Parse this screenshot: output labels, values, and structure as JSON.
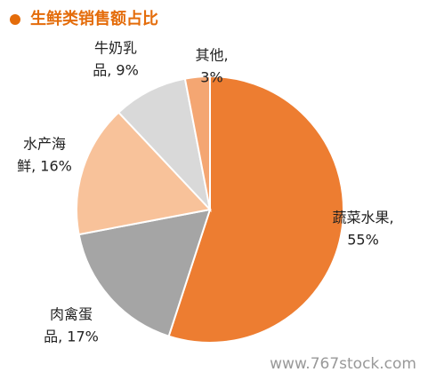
{
  "chart_data": {
    "type": "pie",
    "title": "生鲜类销售额占比",
    "values": [
      55,
      17,
      16,
      9,
      3
    ],
    "labels": [
      [
        "蔬菜水果,",
        "55%"
      ],
      [
        "肉禽蛋",
        "品, 17%"
      ],
      [
        "水产海",
        "鲜, 16%"
      ],
      [
        "牛奶乳",
        "品, 9%"
      ],
      [
        "其他,",
        "3%"
      ]
    ],
    "colors": [
      "#ED7D31",
      "#A5A5A5",
      "#F8C29A",
      "#D9D9D9",
      "#F4A672"
    ],
    "watermark": "www.767stock.com"
  }
}
